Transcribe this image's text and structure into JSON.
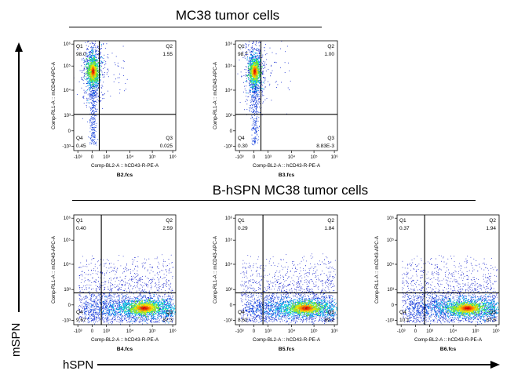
{
  "figure": {
    "outer_x_label": "hSPN",
    "outer_y_label": "mSPN"
  },
  "groups": [
    {
      "title": "MC38 tumor cells"
    },
    {
      "title": "B-hSPN MC38 tumor cells"
    }
  ],
  "chart_data": [
    {
      "type": "scatter",
      "sample": "B2.fcs",
      "xlabel": "Comp-BL2-A :: hCD43-R-PE-A",
      "ylabel": "Comp-RL1-A :: mCD43-APC-A",
      "x_scale": "biexponential",
      "y_scale": "biexponential",
      "x_ticks": [
        "-10³",
        "0",
        "10³",
        "10⁴",
        "10⁵",
        "10⁶"
      ],
      "y_ticks": [
        "-10³",
        "0",
        "10³",
        "10⁴",
        "10⁵",
        "10⁶"
      ],
      "quadrants": {
        "Q1": "98.0",
        "Q2": "1.55",
        "Q3": "0.025",
        "Q4": "0.45"
      },
      "population": "vertical-stalk"
    },
    {
      "type": "scatter",
      "sample": "B3.fcs",
      "xlabel": "Comp-BL2-A :: hCD43-R-PE-A",
      "ylabel": "Comp-RL1-A :: mCD43-APC-A",
      "x_scale": "biexponential",
      "y_scale": "biexponential",
      "x_ticks": [
        "-10³",
        "0",
        "10³",
        "10⁴",
        "10⁵",
        "10⁶"
      ],
      "y_ticks": [
        "-10³",
        "0",
        "10³",
        "10⁴",
        "10⁵",
        "10⁶"
      ],
      "quadrants": {
        "Q1": "98.7",
        "Q2": "1.00",
        "Q3": "8.83E-3",
        "Q4": "0.30"
      },
      "population": "vertical-stalk"
    },
    {
      "type": "scatter",
      "sample": "B4.fcs",
      "xlabel": "Comp-BL2-A :: hCD43-R-PE-A",
      "ylabel": "Comp-RL1-A :: mCD43-APC-A",
      "x_scale": "biexponential",
      "y_scale": "biexponential",
      "x_ticks": [
        "-10³",
        "0",
        "10³",
        "10⁴",
        "10⁵",
        "10⁶"
      ],
      "y_ticks": [
        "-10³",
        "0",
        "10³",
        "10⁴",
        "10⁵",
        "10⁶"
      ],
      "quadrants": {
        "Q1": "0.40",
        "Q2": "2.59",
        "Q3": "87.3",
        "Q4": "9.67"
      },
      "population": "horizontal-band"
    },
    {
      "type": "scatter",
      "sample": "B5.fcs",
      "xlabel": "Comp-BL2-A :: hCD43-R-PE-A",
      "ylabel": "Comp-RL1-A :: mCD43-APC-A",
      "x_scale": "biexponential",
      "y_scale": "biexponential",
      "x_ticks": [
        "-10³",
        "0",
        "10³",
        "10⁴",
        "10⁵",
        "10⁶"
      ],
      "y_ticks": [
        "-10³",
        "0",
        "10³",
        "10⁴",
        "10⁵",
        "10⁶"
      ],
      "quadrants": {
        "Q1": "0.29",
        "Q2": "1.84",
        "Q3": "89.2",
        "Q4": "8.62"
      },
      "population": "horizontal-band"
    },
    {
      "type": "scatter",
      "sample": "B6.fcs",
      "xlabel": "Comp-BL2-A :: hCD43-R-PE-A",
      "ylabel": "Comp-RL1-A :: mCD43-APC-A",
      "x_scale": "biexponential",
      "y_scale": "biexponential",
      "x_ticks": [
        "-10³",
        "0",
        "10³",
        "10⁴",
        "10⁵",
        "10⁶"
      ],
      "y_ticks": [
        "-10³",
        "0",
        "10³",
        "10⁴",
        "10⁵",
        "10⁶"
      ],
      "quadrants": {
        "Q1": "0.37",
        "Q2": "1.94",
        "Q3": "87.6",
        "Q4": "10.1"
      },
      "population": "horizontal-band"
    }
  ]
}
